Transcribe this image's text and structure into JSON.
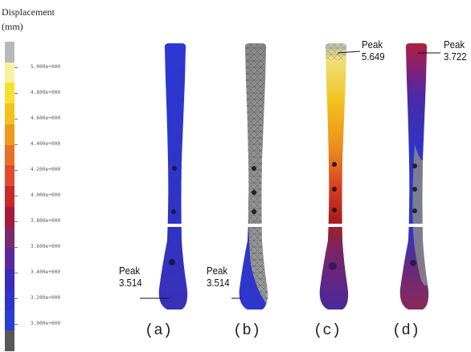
{
  "legend": {
    "title_line1": "Displacement",
    "title_line2": "(mm)",
    "ticks": [
      "5.000e+000",
      "4.800e+000",
      "4.600e+000",
      "4.400e+000",
      "4.200e+000",
      "4.000e+000",
      "3.800e+000",
      "3.600e+000",
      "3.400e+000",
      "3.200e+000",
      "3.000e+000"
    ],
    "colors_top_to_bottom": [
      "#b8b8b8",
      "#f6f2a0",
      "#f6e22e",
      "#f4c21e",
      "#ef9a1c",
      "#e8702a",
      "#e24a2e",
      "#c8282a",
      "#a11c3a",
      "#7a2a6c",
      "#5a2a9a",
      "#3c2ab8",
      "#2e34c8",
      "#2a3ed6",
      "#585858"
    ]
  },
  "panels": [
    {
      "label": "(a)",
      "peak_word": "Peak",
      "peak_value": "3.514",
      "peak_position": "bottom-left"
    },
    {
      "label": "(b)",
      "peak_word": "Peak",
      "peak_value": "3.514",
      "peak_position": "bottom-left"
    },
    {
      "label": "(c)",
      "peak_word": "Peak",
      "peak_value": "5.649",
      "peak_position": "top-right"
    },
    {
      "label": "(d)",
      "peak_word": "Peak",
      "peak_value": "3.722",
      "peak_position": "top-right"
    }
  ]
}
